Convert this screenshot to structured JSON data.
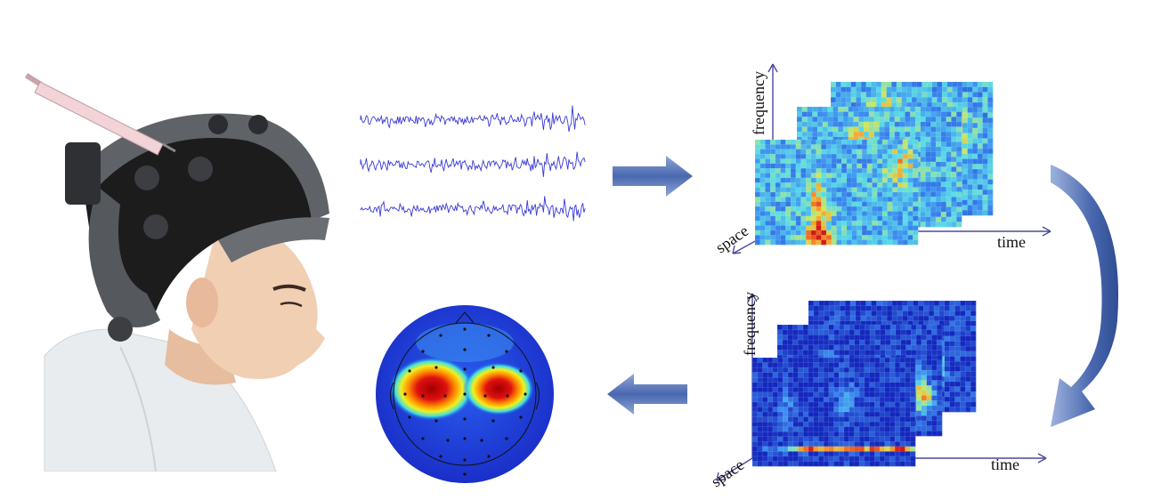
{
  "figure": {
    "top_axes": {
      "y_label": "frequency",
      "x_label": "time",
      "z_label": "space"
    },
    "bottom_axes": {
      "y_label": "frequency",
      "x_label": "time",
      "z_label": "space"
    }
  },
  "colors": {
    "arrow_blue": "#5b79b8",
    "signal_blue": "#3a3ad8",
    "heat_low": "#1428b8",
    "heat_high": "#d01818"
  },
  "icons": [
    "eeg-headset-photo",
    "syringe-icon",
    "right-arrow",
    "curved-down-arrow",
    "left-arrow",
    "scalp-topography"
  ]
}
